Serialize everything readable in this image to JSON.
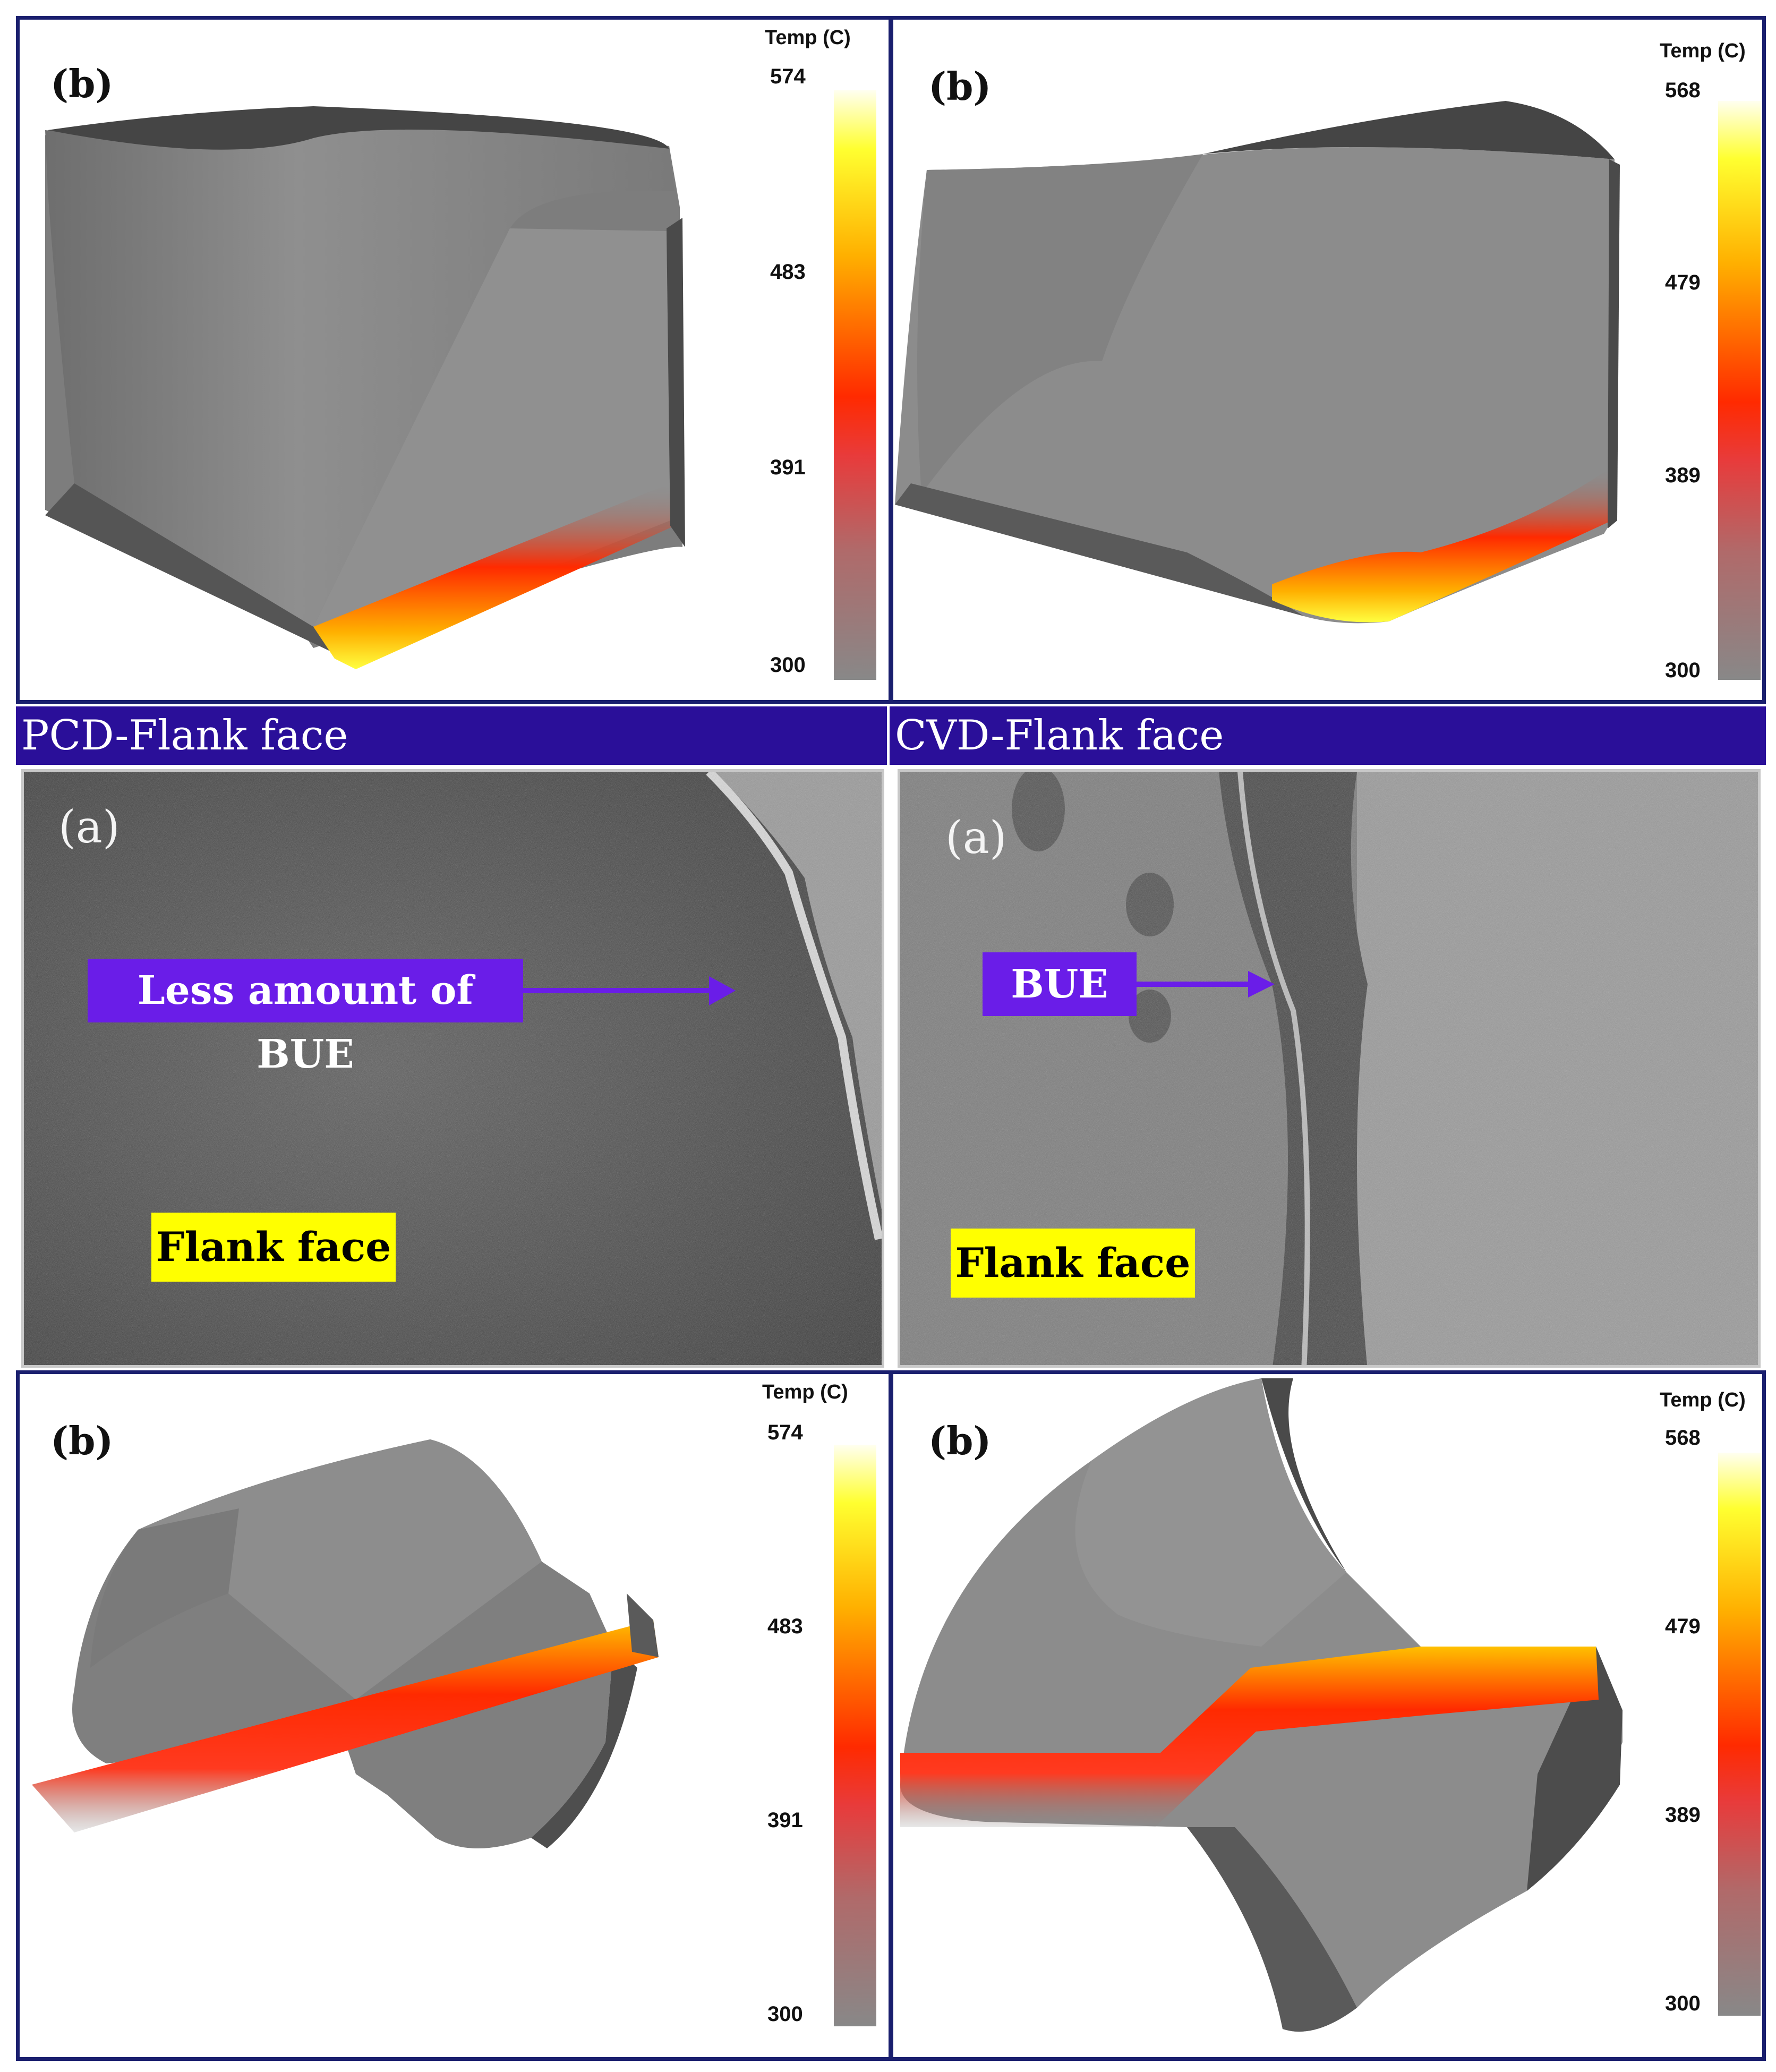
{
  "colorbar_title": "Temp (C)",
  "colors": {
    "frame": "#1a1f6e",
    "band": "#2a0f99",
    "annotation_purple": "#6a1de8",
    "annotation_yellow": "#ffff00"
  },
  "top_left": {
    "label": "(b)",
    "scale": [
      "574",
      "483",
      "391",
      "300"
    ]
  },
  "top_right": {
    "label": "(b)",
    "scale": [
      "568",
      "479",
      "389",
      "300"
    ]
  },
  "bottom_left": {
    "label": "(b)",
    "scale": [
      "574",
      "483",
      "391",
      "300"
    ]
  },
  "bottom_right": {
    "label": "(b)",
    "scale": [
      "568",
      "479",
      "389",
      "300"
    ]
  },
  "pcd": {
    "header": "PCD-Flank face",
    "label": "(a)",
    "arrow_text": "Less amount of BUE",
    "face_text": "Flank  face"
  },
  "cvd": {
    "header": "CVD-Flank face",
    "label": "(a)",
    "arrow_text": "BUE",
    "face_text": "Flank  face"
  }
}
